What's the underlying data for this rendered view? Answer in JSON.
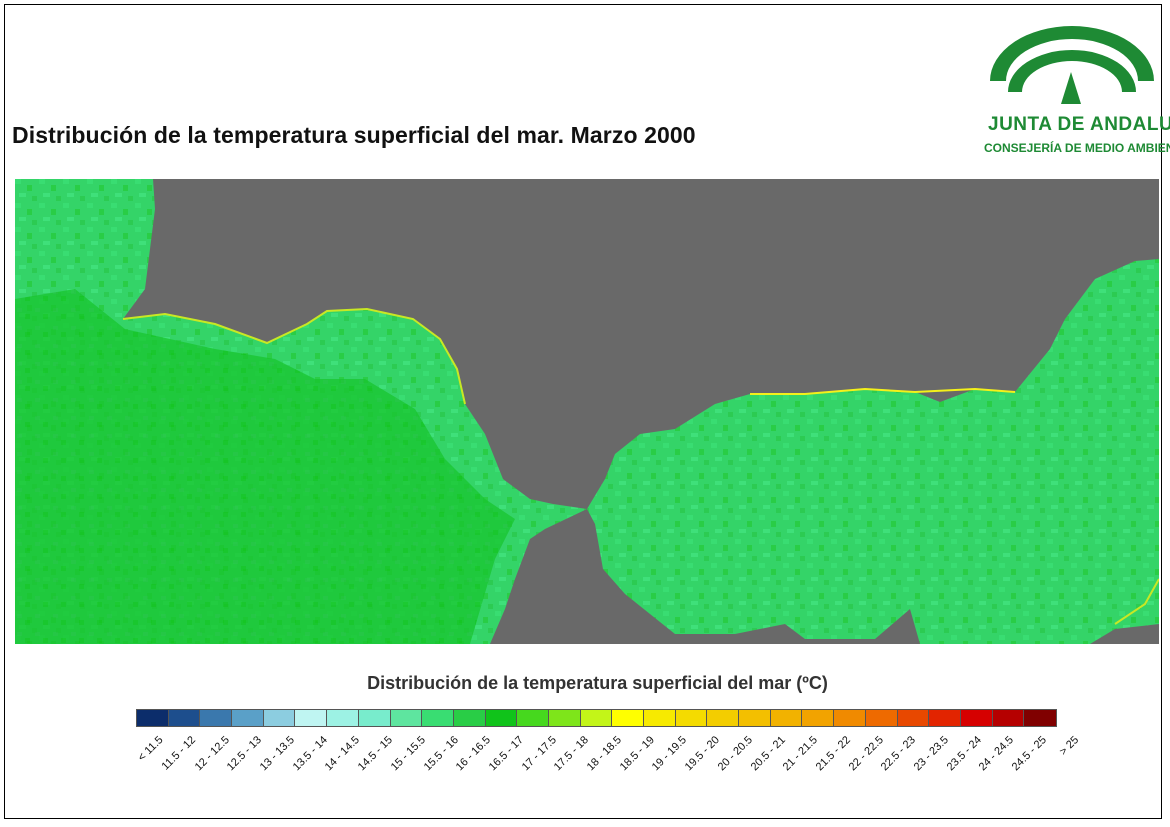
{
  "title": "Distribución de la temperatura superficial del mar. Marzo 2000",
  "logo": {
    "name": "JUNTA DE ANDALUCIA",
    "subtitle": "CONSEJERÍA DE MEDIO AMBIENTE",
    "color": "#1e8a34"
  },
  "map": {
    "land_color": "#696969",
    "sea_colors": [
      "#29cd46",
      "#39dd72",
      "#20c23a",
      "#5ee59f"
    ],
    "coast_colors": [
      "#c8e824",
      "#f4f11a"
    ]
  },
  "legend": {
    "title": "Distribución de la temperatura superficial del mar (ºC)",
    "classes": [
      {
        "label": "< 11.5",
        "color": "#0c2d6b"
      },
      {
        "label": "11.5 - 12",
        "color": "#1d4e8d"
      },
      {
        "label": "12 - 12.5",
        "color": "#3a78ad"
      },
      {
        "label": "12.5 - 13",
        "color": "#5aa0c8"
      },
      {
        "label": "13 - 13.5",
        "color": "#8ccde0"
      },
      {
        "label": "13.5 - 14",
        "color": "#bff5f2"
      },
      {
        "label": "14 - 14.5",
        "color": "#9df2e4"
      },
      {
        "label": "14.5 - 15",
        "color": "#78eccc"
      },
      {
        "label": "15 - 15.5",
        "color": "#5ee59f"
      },
      {
        "label": "15.5 - 16",
        "color": "#39dd72"
      },
      {
        "label": "16 - 16.5",
        "color": "#29cd46"
      },
      {
        "label": "16.5 - 17",
        "color": "#10c31a"
      },
      {
        "label": "17 - 17.5",
        "color": "#46d81e"
      },
      {
        "label": "17.5 - 18",
        "color": "#7ee51a"
      },
      {
        "label": "18 - 18.5",
        "color": "#c3f518"
      },
      {
        "label": "18.5 - 19",
        "color": "#ffff00"
      },
      {
        "label": "19 - 19.5",
        "color": "#f7ea00"
      },
      {
        "label": "19.5 - 20",
        "color": "#f4db00"
      },
      {
        "label": "20 - 20.5",
        "color": "#f3cd00"
      },
      {
        "label": "20.5 - 21",
        "color": "#f3bf00"
      },
      {
        "label": "21 - 21.5",
        "color": "#f2b200"
      },
      {
        "label": "21.5 - 22",
        "color": "#f2a300"
      },
      {
        "label": "22 - 22.5",
        "color": "#f08a00"
      },
      {
        "label": "22.5 - 23",
        "color": "#ee6a00"
      },
      {
        "label": "23 - 23.5",
        "color": "#e84800"
      },
      {
        "label": "23.5 - 24",
        "color": "#e22400"
      },
      {
        "label": "24 - 24.5",
        "color": "#d60000"
      },
      {
        "label": "24.5 - 25",
        "color": "#b50000"
      },
      {
        "label": "> 25",
        "color": "#800000"
      }
    ]
  }
}
